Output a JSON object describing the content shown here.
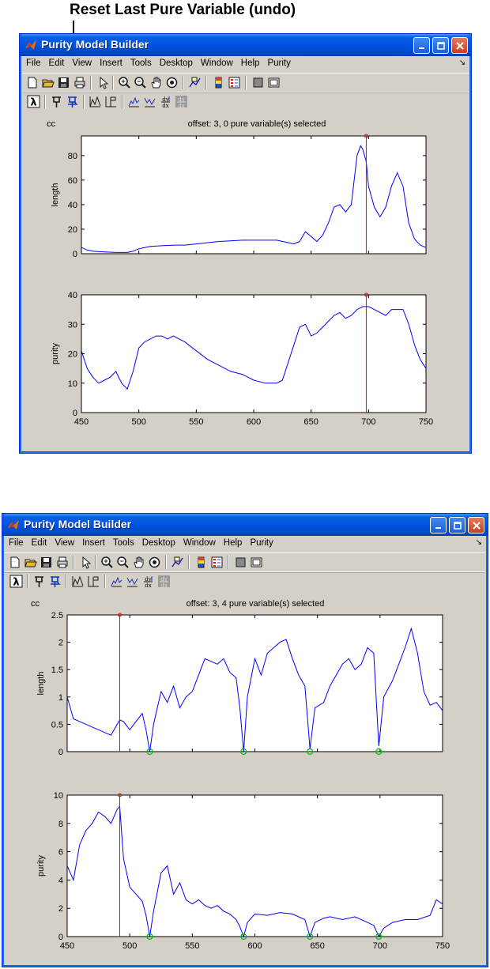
{
  "annotation": {
    "text": "Reset Last Pure Variable (undo)"
  },
  "windows": [
    {
      "title": "Purity Model Builder",
      "menu": [
        "File",
        "Edit",
        "View",
        "Insert",
        "Tools",
        "Desktop",
        "Window",
        "Help",
        "Purity"
      ],
      "figure": {
        "corner_label": "cc",
        "title": "offset: 3, 0 pure variable(s) selected",
        "axes": [
          {
            "ylabel": "length",
            "xlim": [
              450,
              750
            ],
            "ylim": [
              0,
              96
            ],
            "yticks": [
              0,
              20,
              40,
              60,
              80
            ],
            "selected_x": [
              698
            ],
            "zero_markers_x": []
          },
          {
            "ylabel": "purity",
            "xlim": [
              450,
              750
            ],
            "ylim": [
              0,
              40
            ],
            "yticks": [
              0,
              10,
              20,
              30,
              40
            ],
            "xticks": [
              450,
              500,
              550,
              600,
              650,
              700,
              750
            ],
            "selected_x": [
              698
            ],
            "zero_markers_x": []
          }
        ]
      }
    },
    {
      "title": "Purity Model Builder",
      "menu": [
        "File",
        "Edit",
        "View",
        "Insert",
        "Tools",
        "Desktop",
        "Window",
        "Help",
        "Purity"
      ],
      "figure": {
        "corner_label": "cc",
        "title": "offset: 3, 4 pure variable(s) selected",
        "axes": [
          {
            "ylabel": "length",
            "xlim": [
              450,
              750
            ],
            "ylim": [
              0,
              2.5
            ],
            "yticks": [
              0,
              0.5,
              1,
              1.5,
              2,
              2.5
            ],
            "selected_x": [
              492
            ],
            "zero_markers_x": [
              516,
              591,
              644,
              699
            ]
          },
          {
            "ylabel": "purity",
            "xlim": [
              450,
              750
            ],
            "ylim": [
              0,
              10
            ],
            "yticks": [
              0,
              2,
              4,
              6,
              8,
              10
            ],
            "xticks": [
              450,
              500,
              550,
              600,
              650,
              700,
              750
            ],
            "selected_x": [
              492
            ],
            "zero_markers_x": [
              516,
              591,
              644,
              699
            ]
          }
        ]
      }
    }
  ],
  "colors": {
    "line": "#0000ff",
    "selection": "#ff0000",
    "zero_marker": "#00c000",
    "titlebar": "#0054e3"
  },
  "chart_data": [
    {
      "type": "line",
      "title": "offset: 3, 0 pure variable(s) selected",
      "ylabel": "length",
      "ylim": [
        0,
        96
      ],
      "xlim": [
        450,
        750
      ],
      "x": [
        450,
        455,
        460,
        470,
        480,
        490,
        495,
        500,
        505,
        510,
        520,
        530,
        540,
        550,
        560,
        570,
        580,
        590,
        600,
        610,
        620,
        630,
        635,
        640,
        645,
        650,
        655,
        660,
        665,
        670,
        675,
        680,
        685,
        690,
        693,
        695,
        698,
        700,
        705,
        710,
        715,
        720,
        725,
        730,
        735,
        740,
        745,
        750
      ],
      "values": [
        5,
        3,
        2,
        1.5,
        1,
        1,
        2,
        4,
        5,
        6,
        6.5,
        7,
        7,
        8,
        9,
        10,
        10.5,
        11,
        11,
        11,
        11,
        9,
        8,
        10,
        18,
        14,
        10,
        15,
        25,
        38,
        40,
        34,
        40,
        80,
        88,
        85,
        75,
        55,
        38,
        30,
        38,
        55,
        66,
        55,
        25,
        12,
        7,
        5
      ]
    },
    {
      "type": "line",
      "title": "offset: 3, 0 pure variable(s) selected",
      "ylabel": "purity",
      "ylim": [
        0,
        40
      ],
      "xlim": [
        450,
        750
      ],
      "x": [
        450,
        455,
        460,
        465,
        470,
        475,
        480,
        485,
        490,
        495,
        500,
        505,
        510,
        515,
        520,
        525,
        530,
        540,
        550,
        560,
        570,
        580,
        590,
        600,
        610,
        620,
        625,
        630,
        635,
        640,
        645,
        650,
        655,
        660,
        665,
        670,
        675,
        680,
        685,
        690,
        695,
        700,
        705,
        710,
        715,
        720,
        725,
        730,
        735,
        740,
        745,
        750
      ],
      "values": [
        21,
        15,
        12,
        10,
        11,
        12,
        14,
        10,
        8,
        14,
        22,
        24,
        25,
        26,
        26,
        25,
        26,
        24,
        21,
        18,
        16,
        14,
        13,
        11,
        10,
        10,
        11,
        17,
        23,
        29,
        30,
        26,
        27,
        29,
        31,
        33,
        34,
        32,
        33,
        35,
        36,
        36,
        35,
        34,
        33,
        35,
        35,
        35,
        30,
        23,
        18,
        15
      ]
    },
    {
      "type": "line",
      "title": "offset: 3, 4 pure variable(s) selected",
      "ylabel": "length",
      "ylim": [
        0,
        2.5
      ],
      "xlim": [
        450,
        750
      ],
      "x": [
        450,
        455,
        460,
        465,
        470,
        475,
        480,
        485,
        490,
        492,
        495,
        500,
        505,
        510,
        513,
        516,
        519,
        525,
        530,
        535,
        540,
        545,
        550,
        555,
        560,
        565,
        570,
        575,
        580,
        585,
        588,
        591,
        594,
        600,
        605,
        610,
        615,
        620,
        625,
        630,
        635,
        640,
        644,
        648,
        655,
        660,
        665,
        670,
        675,
        680,
        685,
        690,
        695,
        699,
        703,
        710,
        715,
        720,
        725,
        730,
        735,
        740,
        745,
        750
      ],
      "values": [
        1.0,
        0.6,
        0.55,
        0.5,
        0.45,
        0.4,
        0.35,
        0.3,
        0.5,
        0.58,
        0.55,
        0.4,
        0.55,
        0.7,
        0.4,
        0.0,
        0.5,
        1.1,
        0.9,
        1.2,
        0.8,
        1.0,
        1.1,
        1.4,
        1.7,
        1.65,
        1.6,
        1.7,
        1.45,
        1.35,
        0.8,
        0.0,
        1.0,
        1.7,
        1.4,
        1.8,
        1.9,
        2.0,
        2.05,
        1.7,
        1.4,
        1.2,
        0.05,
        0.8,
        0.9,
        1.2,
        1.4,
        1.6,
        1.7,
        1.5,
        1.6,
        1.9,
        1.8,
        0.1,
        1.0,
        1.3,
        1.6,
        1.9,
        2.25,
        1.8,
        1.1,
        0.85,
        0.9,
        0.75
      ]
    },
    {
      "type": "line",
      "title": "offset: 3, 4 pure variable(s) selected",
      "ylabel": "purity",
      "ylim": [
        0,
        10
      ],
      "xlim": [
        450,
        750
      ],
      "x": [
        450,
        455,
        460,
        465,
        470,
        475,
        480,
        485,
        490,
        492,
        495,
        500,
        505,
        510,
        513,
        516,
        519,
        525,
        530,
        535,
        540,
        545,
        550,
        555,
        560,
        565,
        570,
        575,
        580,
        585,
        588,
        591,
        594,
        600,
        610,
        620,
        630,
        640,
        644,
        648,
        655,
        660,
        670,
        680,
        690,
        695,
        699,
        703,
        710,
        720,
        730,
        740,
        745,
        750
      ],
      "values": [
        5.0,
        4.0,
        6.5,
        7.5,
        8.0,
        8.8,
        8.5,
        8.0,
        9.0,
        9.2,
        5.5,
        3.5,
        3.0,
        2.5,
        1.5,
        0.0,
        1.8,
        4.5,
        5.0,
        3.0,
        3.8,
        2.6,
        2.3,
        2.6,
        2.2,
        2.0,
        2.2,
        1.8,
        1.6,
        1.2,
        0.7,
        0.0,
        1.0,
        1.6,
        1.5,
        1.7,
        1.6,
        1.2,
        0.0,
        1.0,
        1.3,
        1.4,
        1.2,
        1.4,
        1.0,
        0.8,
        0.0,
        0.6,
        1.0,
        1.2,
        1.2,
        1.5,
        2.6,
        2.3
      ]
    }
  ]
}
